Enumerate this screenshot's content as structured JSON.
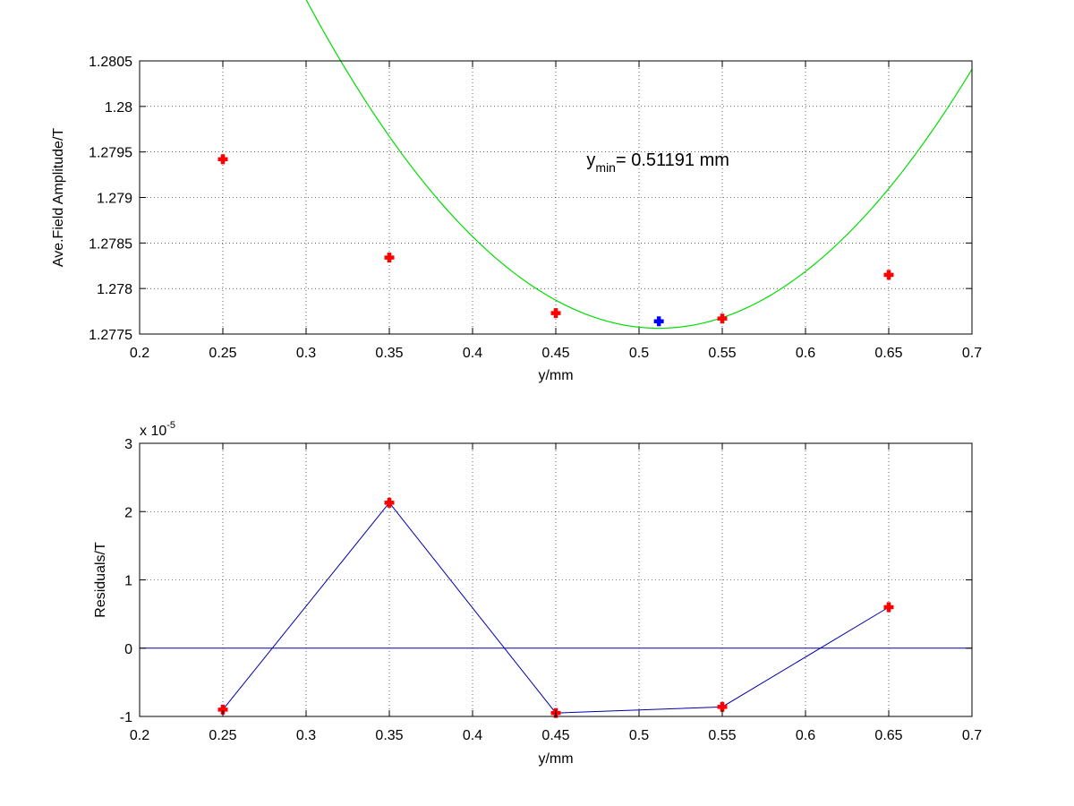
{
  "chart_data": [
    {
      "type": "scatter",
      "xlabel": "y/mm",
      "ylabel": "Ave.Field Amplitude/T",
      "xlim": [
        0.2,
        0.7
      ],
      "ylim": [
        1.2775,
        1.2805
      ],
      "xticks": [
        0.2,
        0.25,
        0.3,
        0.35,
        0.4,
        0.45,
        0.5,
        0.55,
        0.6,
        0.65,
        0.7
      ],
      "yticks": [
        1.2775,
        1.278,
        1.2785,
        1.279,
        1.2795,
        1.28,
        1.2805
      ],
      "xtick_labels": [
        "0.2",
        "0.25",
        "0.3",
        "0.35",
        "0.4",
        "0.45",
        "0.5",
        "0.55",
        "0.6",
        "0.65",
        "0.7"
      ],
      "ytick_labels": [
        "1.2775",
        "1.278",
        "1.2785",
        "1.279",
        "1.2795",
        "1.28",
        "1.2805"
      ],
      "grid": true,
      "series": [
        {
          "marker": "plus",
          "color": "#ff0000",
          "x": [
            0.25,
            0.35,
            0.45,
            0.55,
            0.65
          ],
          "y": [
            1.27942,
            1.27834,
            1.27773,
            1.27767,
            1.27815
          ]
        },
        {
          "marker": "plus",
          "color": "#0000ff",
          "x": [
            0.51191
          ],
          "y": [
            1.27764
          ]
        },
        {
          "line": "solid",
          "color": "#00dd00",
          "fit": "quadratic",
          "coefficients": [
            0.080405,
            -0.082316,
            1.2986318
          ],
          "x_range": [
            0.2,
            0.7
          ]
        }
      ],
      "annotation": {
        "base": "y",
        "subscript": "min",
        "text": "= 0.51191 mm",
        "x": 0.4685,
        "y": 1.27935
      }
    },
    {
      "type": "line",
      "xlabel": "y/mm",
      "ylabel": "Residuals/T",
      "xlim": [
        0.2,
        0.7
      ],
      "ylim": [
        -1,
        3
      ],
      "xticks": [
        0.2,
        0.25,
        0.3,
        0.35,
        0.4,
        0.45,
        0.5,
        0.55,
        0.6,
        0.65,
        0.7
      ],
      "yticks": [
        -1,
        0,
        1,
        2,
        3
      ],
      "xtick_labels": [
        "0.2",
        "0.25",
        "0.3",
        "0.35",
        "0.4",
        "0.45",
        "0.5",
        "0.55",
        "0.6",
        "0.65",
        "0.7"
      ],
      "ytick_labels": [
        "-1",
        "0",
        "1",
        "2",
        "3"
      ],
      "scale_label_base": "x 10",
      "scale_label_exp": "-5",
      "grid": true,
      "zero_line": {
        "y": 0,
        "color": "#0000aa"
      },
      "series": [
        {
          "line": "solid",
          "color": "#0000aa",
          "marker": "plus",
          "marker_color": "#ff0000",
          "x": [
            0.25,
            0.35,
            0.45,
            0.55,
            0.65
          ],
          "y": [
            -0.9,
            2.13,
            -0.95,
            -0.86,
            0.6
          ]
        }
      ]
    }
  ]
}
